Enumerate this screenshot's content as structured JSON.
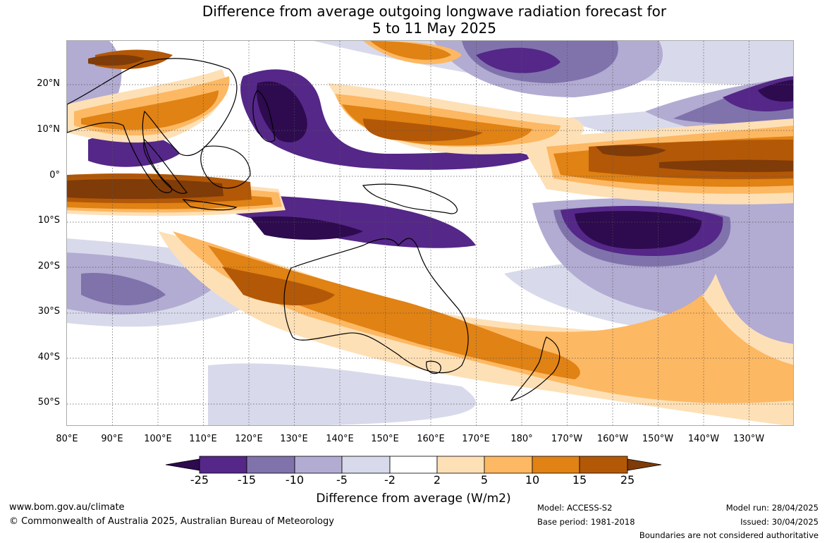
{
  "title_line1": "Difference from average outgoing longwave radiation forecast for",
  "title_line2": "5 to 11 May 2025",
  "lat_labels": [
    "20°N",
    "10°N",
    "0°",
    "10°S",
    "20°S",
    "30°S",
    "40°S",
    "50°S"
  ],
  "lon_labels": [
    "80°E",
    "90°E",
    "100°E",
    "110°E",
    "120°E",
    "130°E",
    "140°E",
    "150°E",
    "160°E",
    "170°E",
    "180°",
    "170°W",
    "160°W",
    "150°W",
    "140°W",
    "130°W"
  ],
  "colorbar": {
    "ticks": [
      "-25",
      "-15",
      "-10",
      "-5",
      "-2",
      "2",
      "5",
      "10",
      "15",
      "25"
    ],
    "colors": [
      "#2e0a4f",
      "#542788",
      "#8073ac",
      "#b2abd2",
      "#d8daeb",
      "#ffffff",
      "#fee0b6",
      "#fdb863",
      "#e08214",
      "#b35806",
      "#7f3b08"
    ],
    "label": "Difference from average (W/m2)"
  },
  "footer": {
    "url": "www.bom.gov.au/climate",
    "copyright": "© Commonwealth of Australia 2025, Australian Bureau of Meteorology",
    "model": "Model: ACCESS-S2",
    "base_period": "Base period: 1981-2018",
    "model_run": "Model run: 28/04/2025",
    "issued": "Issued: 30/04/2025",
    "disclaimer": "Boundaries are not considered authoritative"
  }
}
